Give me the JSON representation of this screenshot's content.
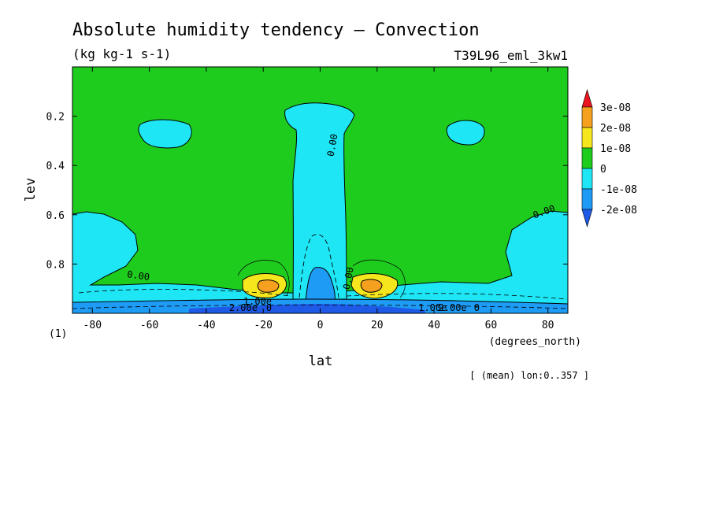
{
  "header": {
    "title": "Absolute humidity tendency — Convection",
    "units": "(kg kg-1 s-1)",
    "run": "T39L96_eml_3kw1"
  },
  "footer": {
    "panel": "(1)",
    "xunits": "(degrees_north)",
    "mean_note": "[ (mean) lon:0..357 ]"
  },
  "colors": {
    "above": "#e8141e",
    "c2e8": "#f5a01e",
    "c1e8": "#f5e61e",
    "c0": "#1ecc1e",
    "cm1e8": "#1ee6f5",
    "cm2e8": "#1e9bf5",
    "below": "#1e5ae6"
  },
  "chart_data": {
    "type": "heatmap",
    "title": "Absolute humidity tendency — Convection",
    "xlabel": "lat",
    "ylabel": "lev",
    "xlim": [
      -87,
      87
    ],
    "ylim": [
      0.0,
      1.0
    ],
    "y_inverted": true,
    "xticks": [
      -80,
      -60,
      -40,
      -20,
      0,
      20,
      40,
      60,
      80
    ],
    "yticks": [
      0.2,
      0.4,
      0.6,
      0.8
    ],
    "xtick_labels": [
      "-80",
      "-60",
      "-40",
      "-20",
      "0",
      "20",
      "40",
      "60",
      "80"
    ],
    "ytick_labels": [
      "0.2",
      "0.4",
      "0.6",
      "0.8"
    ],
    "colorbar": {
      "labels": [
        "3e-08",
        "2e-08",
        "1e-08",
        "0",
        "-1e-08",
        "-2e-08"
      ],
      "levels": [
        3e-08,
        2e-08,
        1e-08,
        0,
        -1e-08,
        -2e-08
      ],
      "colors": [
        "#f5a01e",
        "#f5e61e",
        "#1ecc1e",
        "#1ee6f5",
        "#1e9bf5"
      ],
      "extend": "both"
    },
    "contour_labels": [
      {
        "text": "0.00",
        "x": 5.4,
        "y": 0.32,
        "rotate": -80
      },
      {
        "text": "0.00",
        "x": 79,
        "y": 0.6,
        "rotate": -20
      },
      {
        "text": "0.00",
        "x": -64,
        "y": 0.86,
        "rotate": 8
      },
      {
        "text": "0.00",
        "x": 11,
        "y": 0.86,
        "rotate": -80
      },
      {
        "text": "1.00e",
        "x": -22,
        "y": 0.965,
        "rotate": 0
      },
      {
        "text": "2.00e",
        "x": -27,
        "y": 0.99,
        "rotate": 0
      },
      {
        "text": "0",
        "x": -18,
        "y": 0.99,
        "rotate": 0
      },
      {
        "text": "1.00e",
        "x": 39.5,
        "y": 0.99,
        "rotate": 0
      },
      {
        "text": "2.00e",
        "x": 46.5,
        "y": 0.99,
        "rotate": 0
      },
      {
        "text": "0",
        "x": 55,
        "y": 0.99,
        "rotate": 0
      }
    ],
    "regions": [
      {
        "level": "0",
        "description": "background over most of domain"
      },
      {
        "level": "-1e-08",
        "description": "equatorial column -10..10 lat up to 0.15 lev; polar low levels; small patches near 0.25 lev at ±50 lat"
      },
      {
        "level": "-2e-08",
        "description": "equatorial core below 0.8 lev; near-surface layer"
      },
      {
        "level": "2e-08",
        "description": "subtropical maxima at ±18 lat near 0.88 lev"
      }
    ]
  }
}
